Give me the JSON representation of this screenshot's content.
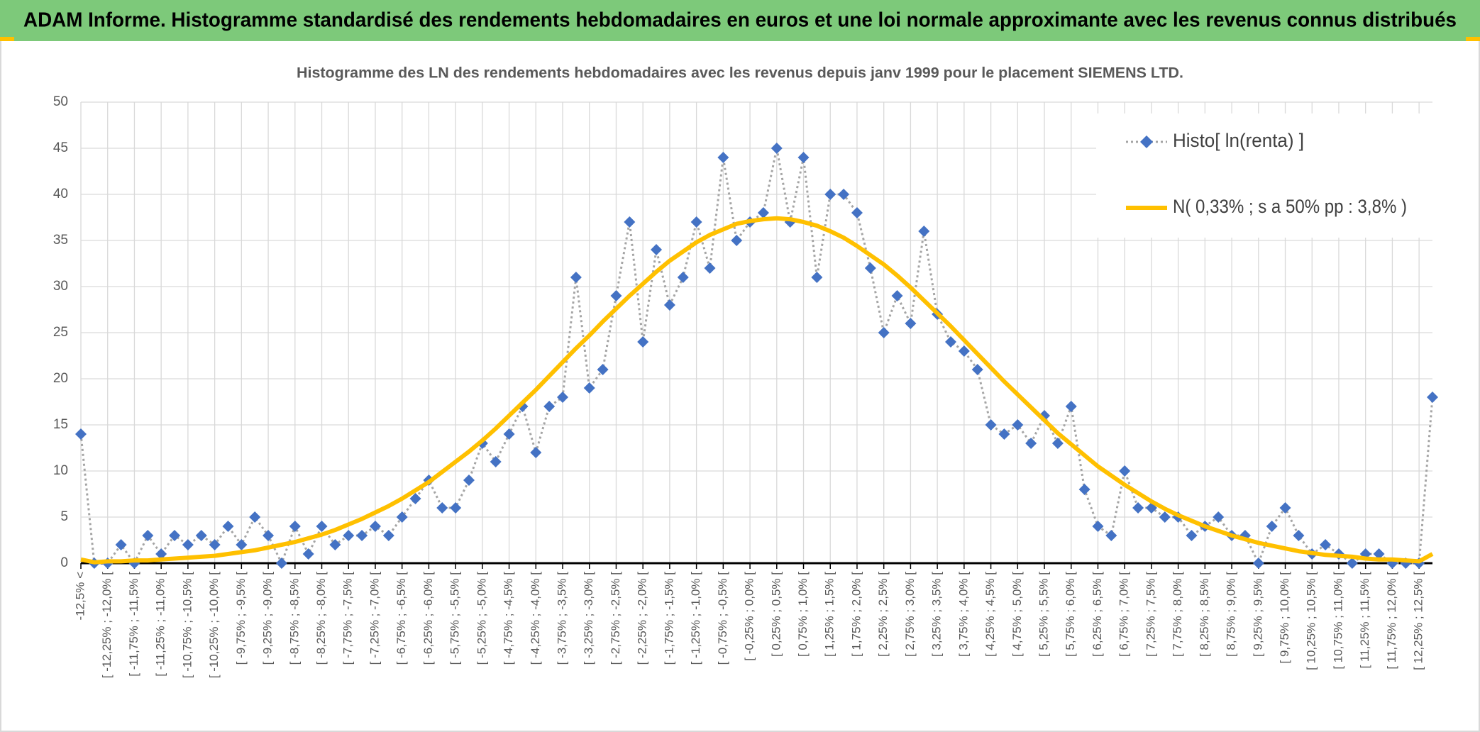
{
  "chart_data": {
    "type": "line",
    "title": "ADAM Informe. Histogramme standardisé des rendements hebdomadaires en euros et une loi normale approximante avec les revenus connus distribués",
    "subtitle": "Histogramme des LN des rendements hebdomadaires avec les revenus depuis janv 1999 pour le placement SIEMENS LTD.",
    "categories": [
      "-12,5% <",
      null,
      "[ -12,25% ; -12,0% [",
      null,
      "[ -11,75% ; -11,5% [",
      null,
      "[ -11,25% ; -11,0% [",
      null,
      "[ -10,75% ; -10,5% [",
      null,
      "[ -10,25% ; -10,0% [",
      null,
      "[ -9,75% ; -9,5% [",
      null,
      "[ -9,25% ; -9,0% [",
      null,
      "[ -8,75% ; -8,5% [",
      null,
      "[ -8,25% ; -8,0% [",
      null,
      "[ -7,75% ; -7,5% [",
      null,
      "[ -7,25% ; -7,0% [",
      null,
      "[ -6,75% ; -6,5% [",
      null,
      "[ -6,25% ; -6,0% [",
      null,
      "[ -5,75% ; -5,5% [",
      null,
      "[ -5,25% ; -5,0% [",
      null,
      "[ -4,75% ; -4,5% [",
      null,
      "[ -4,25% ; -4,0% [",
      null,
      "[ -3,75% ; -3,5% [",
      null,
      "[ -3,25% ; -3,0% [",
      null,
      "[ -2,75% ; -2,5% [",
      null,
      "[ -2,25% ; -2,0% [",
      null,
      "[ -1,75% ; -1,5% [",
      null,
      "[ -1,25% ; -1,0% [",
      null,
      "[ -0,75% ; -0,5% [",
      null,
      "[ -0,25% ; 0,0% [",
      null,
      "[ 0,25% ; 0,5% [",
      null,
      "[ 0,75% ; 1,0% [",
      null,
      "[ 1,25% ; 1,5% [",
      null,
      "[ 1,75% ; 2,0% [",
      null,
      "[ 2,25% ; 2,5% [",
      null,
      "[ 2,75% ; 3,0% [",
      null,
      "[ 3,25% ; 3,5% [",
      null,
      "[ 3,75% ; 4,0% [",
      null,
      "[ 4,25% ; 4,5% [",
      null,
      "[ 4,75% ; 5,0% [",
      null,
      "[ 5,25% ; 5,5% [",
      null,
      "[ 5,75% ; 6,0% [",
      null,
      "[ 6,25% ; 6,5% [",
      null,
      "[ 6,75% ; 7,0% [",
      null,
      "[ 7,25% ; 7,5% [",
      null,
      "[ 7,75% ; 8,0% [",
      null,
      "[ 8,25% ; 8,5% [",
      null,
      "[ 8,75% ; 9,0% [",
      null,
      "[ 9,25% ; 9,5% [",
      null,
      "[ 9,75% ; 10,0% [",
      null,
      "[ 10,25% ; 10,5% [",
      null,
      "[ 10,75% ; 11,0% [",
      null,
      "[ 11,25% ; 11,5% [",
      null,
      "[ 11,75% ; 12,0% [",
      null,
      "[ 12,25% ; 12,5% [",
      null
    ],
    "series": [
      {
        "name": "Histo[ ln(renta) ]",
        "color": "#4472c4",
        "line_color": "#a5a5a5",
        "line_style": "dotted",
        "marker": "diamond",
        "values": [
          14,
          0,
          0,
          2,
          0,
          3,
          1,
          3,
          2,
          3,
          2,
          4,
          2,
          5,
          3,
          0,
          4,
          1,
          4,
          2,
          3,
          3,
          4,
          3,
          5,
          7,
          9,
          6,
          6,
          9,
          13,
          11,
          14,
          17,
          12,
          17,
          18,
          31,
          19,
          21,
          29,
          37,
          24,
          34,
          28,
          31,
          37,
          32,
          44,
          35,
          37,
          38,
          45,
          37,
          44,
          31,
          40,
          40,
          38,
          32,
          25,
          29,
          26,
          36,
          27,
          24,
          23,
          21,
          15,
          14,
          15,
          13,
          16,
          13,
          17,
          8,
          4,
          3,
          10,
          6,
          6,
          5,
          5,
          3,
          4,
          5,
          3,
          3,
          0,
          4,
          6,
          3,
          1,
          2,
          1,
          0,
          1,
          1,
          0,
          0,
          0,
          18
        ]
      },
      {
        "name": "N( 0,33% ; s a 50% pp : 3,8% )",
        "color": "#ffc000",
        "line_style": "solid",
        "values": [
          0.4,
          0.1,
          0.2,
          0.2,
          0.3,
          0.3,
          0.4,
          0.5,
          0.6,
          0.7,
          0.8,
          1.0,
          1.2,
          1.4,
          1.7,
          2.0,
          2.3,
          2.7,
          3.1,
          3.6,
          4.2,
          4.8,
          5.5,
          6.2,
          7.0,
          7.9,
          8.8,
          9.9,
          11.0,
          12.1,
          13.3,
          14.6,
          16.0,
          17.4,
          18.8,
          20.3,
          21.8,
          23.3,
          24.7,
          26.2,
          27.6,
          29.0,
          30.3,
          31.6,
          32.8,
          33.8,
          34.8,
          35.6,
          36.2,
          36.8,
          37.1,
          37.3,
          37.4,
          37.3,
          37.0,
          36.6,
          36.0,
          35.3,
          34.4,
          33.4,
          32.4,
          31.2,
          29.9,
          28.5,
          27.1,
          25.7,
          24.2,
          22.7,
          21.2,
          19.7,
          18.3,
          16.9,
          15.5,
          14.1,
          12.9,
          11.7,
          10.5,
          9.5,
          8.5,
          7.6,
          6.7,
          5.9,
          5.2,
          4.6,
          4.0,
          3.5,
          3.0,
          2.6,
          2.2,
          1.9,
          1.6,
          1.3,
          1.1,
          0.9,
          0.8,
          0.7,
          0.5,
          0.4,
          0.4,
          0.3,
          0.2,
          1.0
        ]
      }
    ],
    "ylim": [
      0,
      50
    ],
    "yticks": [
      0,
      5,
      10,
      15,
      20,
      25,
      30,
      35,
      40,
      45,
      50
    ],
    "grid": true,
    "legend": "top-right"
  }
}
